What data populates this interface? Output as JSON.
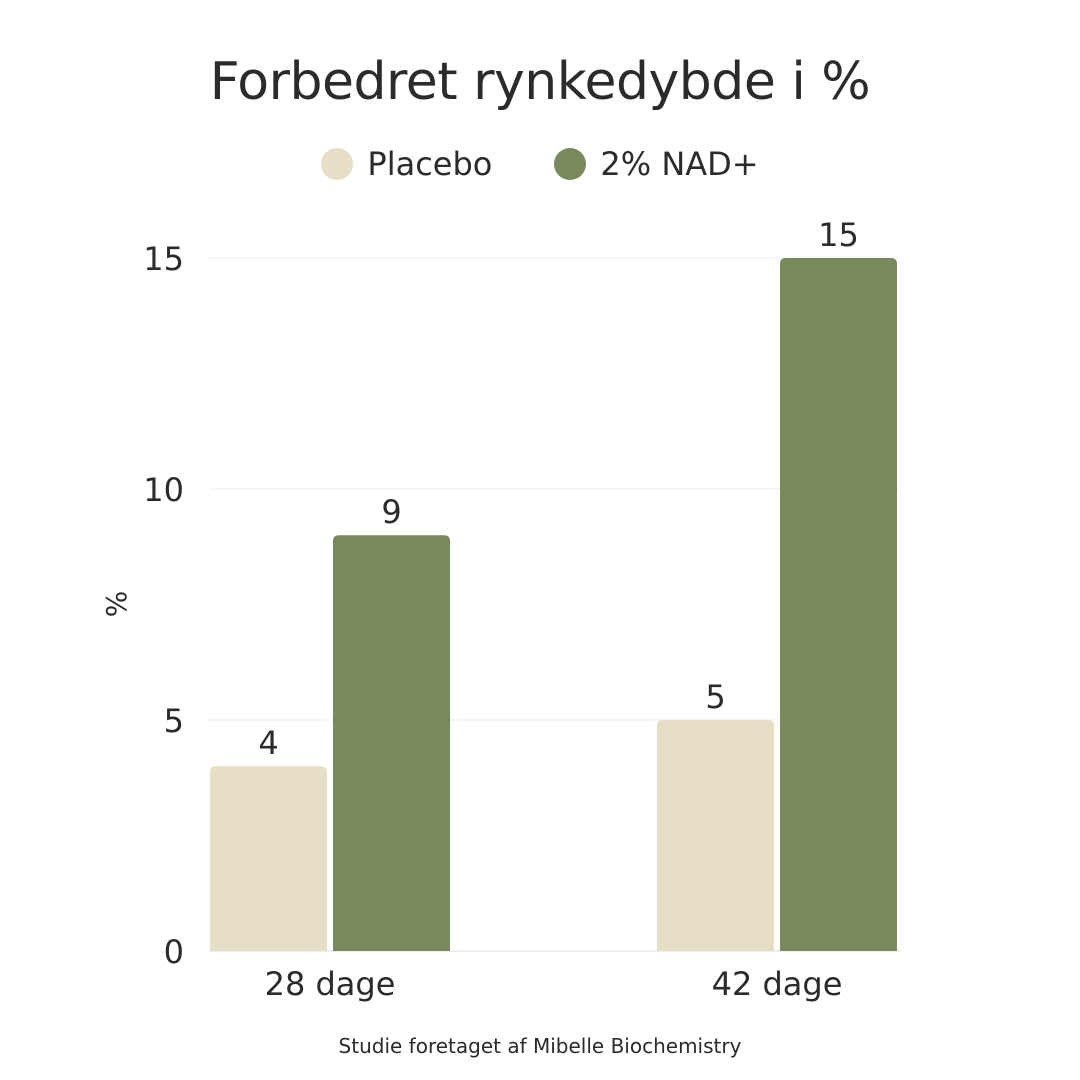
{
  "chart_data": {
    "type": "bar",
    "title": "Forbedret rynkedybde i %",
    "xlabel": "",
    "ylabel": "%",
    "categories": [
      "28 dage",
      "42 dage"
    ],
    "series": [
      {
        "name": "Placebo",
        "values": [
          4,
          5
        ],
        "color": "#e7dec6"
      },
      {
        "name": "2% NAD+",
        "values": [
          9,
          15
        ],
        "color": "#78895b"
      }
    ],
    "ylim": [
      0,
      15
    ],
    "yticks": [
      0,
      5,
      10,
      15
    ],
    "grid": true,
    "legend_position": "top-center",
    "data_labels": true
  },
  "footnote": "Studie foretaget af Mibelle Biochemistry"
}
